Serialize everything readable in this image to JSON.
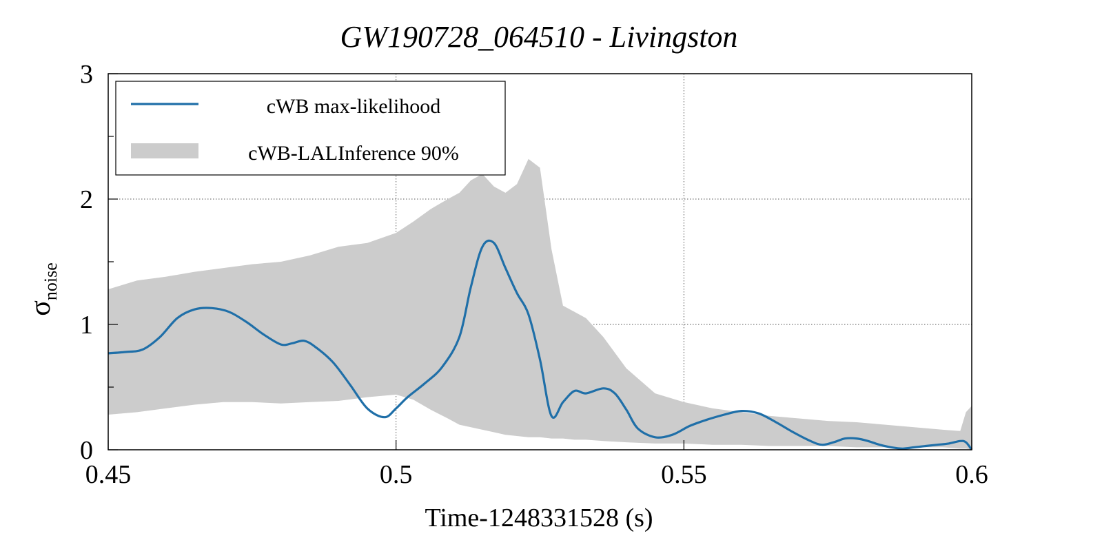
{
  "chart_data": {
    "type": "line",
    "title": "GW190728_064510 - Livingston",
    "xlabel": "Time-1248331528 (s)",
    "ylabel_main": "σ",
    "ylabel_sub": "noise",
    "xlim": [
      0.45,
      0.6
    ],
    "ylim": [
      0,
      3
    ],
    "xticks": [
      0.45,
      0.5,
      0.55,
      0.6
    ],
    "xtick_labels": [
      "0.45",
      "0.5",
      "0.55",
      "0.6"
    ],
    "yticks": [
      0,
      1,
      2,
      3
    ],
    "ytick_labels": [
      "0",
      "1",
      "2",
      "3"
    ],
    "grid": true,
    "legend_position": "top-left",
    "colors": {
      "line": "#1f6fa8",
      "band": "#cccccc"
    },
    "series": [
      {
        "name": "cWB max-likelihood",
        "kind": "line",
        "x": [
          0.45,
          0.453,
          0.456,
          0.459,
          0.462,
          0.465,
          0.468,
          0.471,
          0.474,
          0.477,
          0.48,
          0.482,
          0.484,
          0.486,
          0.489,
          0.492,
          0.495,
          0.498,
          0.5,
          0.502,
          0.505,
          0.508,
          0.511,
          0.513,
          0.515,
          0.517,
          0.519,
          0.521,
          0.523,
          0.525,
          0.527,
          0.529,
          0.531,
          0.533,
          0.536,
          0.538,
          0.54,
          0.542,
          0.545,
          0.548,
          0.551,
          0.554,
          0.557,
          0.56,
          0.563,
          0.566,
          0.569,
          0.572,
          0.574,
          0.576,
          0.578,
          0.58,
          0.582,
          0.584,
          0.586,
          0.588,
          0.59,
          0.592,
          0.594,
          0.596,
          0.598,
          0.599,
          0.6
        ],
        "y": [
          0.77,
          0.78,
          0.8,
          0.9,
          1.05,
          1.12,
          1.13,
          1.1,
          1.02,
          0.92,
          0.84,
          0.85,
          0.87,
          0.82,
          0.7,
          0.52,
          0.33,
          0.26,
          0.33,
          0.42,
          0.53,
          0.66,
          0.9,
          1.3,
          1.62,
          1.65,
          1.45,
          1.25,
          1.08,
          0.72,
          0.27,
          0.38,
          0.47,
          0.45,
          0.49,
          0.45,
          0.32,
          0.17,
          0.1,
          0.12,
          0.19,
          0.24,
          0.28,
          0.31,
          0.29,
          0.22,
          0.14,
          0.07,
          0.04,
          0.06,
          0.09,
          0.09,
          0.07,
          0.04,
          0.02,
          0.01,
          0.02,
          0.03,
          0.04,
          0.05,
          0.07,
          0.06,
          0.0
        ]
      },
      {
        "name": "cWB-LALInference 90%",
        "kind": "band",
        "x": [
          0.45,
          0.455,
          0.46,
          0.465,
          0.47,
          0.475,
          0.48,
          0.485,
          0.49,
          0.495,
          0.5,
          0.503,
          0.506,
          0.509,
          0.511,
          0.513,
          0.515,
          0.517,
          0.519,
          0.521,
          0.523,
          0.525,
          0.527,
          0.529,
          0.531,
          0.533,
          0.536,
          0.54,
          0.545,
          0.55,
          0.555,
          0.56,
          0.565,
          0.57,
          0.575,
          0.58,
          0.585,
          0.59,
          0.595,
          0.598,
          0.599,
          0.6
        ],
        "upper": [
          1.28,
          1.35,
          1.38,
          1.42,
          1.45,
          1.48,
          1.5,
          1.55,
          1.62,
          1.65,
          1.73,
          1.82,
          1.92,
          2.0,
          2.05,
          2.15,
          2.2,
          2.1,
          2.05,
          2.12,
          2.32,
          2.25,
          1.6,
          1.15,
          1.1,
          1.05,
          0.9,
          0.65,
          0.45,
          0.38,
          0.33,
          0.3,
          0.27,
          0.25,
          0.23,
          0.22,
          0.2,
          0.18,
          0.16,
          0.15,
          0.3,
          0.35
        ],
        "lower": [
          0.28,
          0.3,
          0.33,
          0.36,
          0.38,
          0.38,
          0.37,
          0.38,
          0.39,
          0.42,
          0.44,
          0.4,
          0.32,
          0.25,
          0.2,
          0.18,
          0.16,
          0.14,
          0.12,
          0.11,
          0.1,
          0.1,
          0.09,
          0.09,
          0.08,
          0.08,
          0.07,
          0.06,
          0.05,
          0.05,
          0.04,
          0.04,
          0.03,
          0.03,
          0.03,
          0.02,
          0.02,
          0.02,
          0.02,
          0.01,
          0.01,
          0.0
        ]
      }
    ]
  }
}
